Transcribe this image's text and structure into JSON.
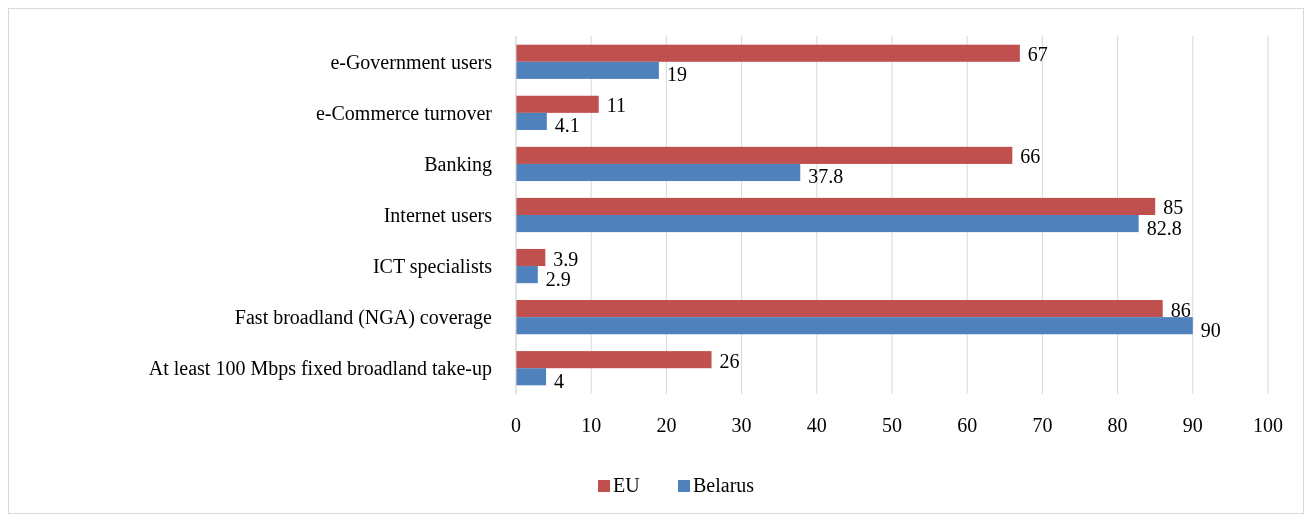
{
  "chart_data": {
    "type": "bar",
    "orientation": "horizontal",
    "categories": [
      "e-Government users",
      "e-Commerce turnover",
      "Banking",
      "Internet users",
      "ICT specialists",
      "Fast broadland (NGA) coverage",
      "At least 100 Mbps fixed broadland take-up"
    ],
    "series": [
      {
        "name": "EU",
        "color": "#c0504d",
        "values": [
          67,
          11,
          66,
          85,
          3.9,
          86,
          26
        ]
      },
      {
        "name": "Belarus",
        "color": "#4f81bd",
        "values": [
          19,
          4.1,
          37.8,
          82.8,
          2.9,
          90,
          4
        ]
      }
    ],
    "xlim": [
      0,
      100
    ],
    "xticks": [
      0,
      10,
      20,
      30,
      40,
      50,
      60,
      70,
      80,
      90,
      100
    ],
    "grid": "x",
    "legend": "bottom",
    "data_labels": true
  }
}
